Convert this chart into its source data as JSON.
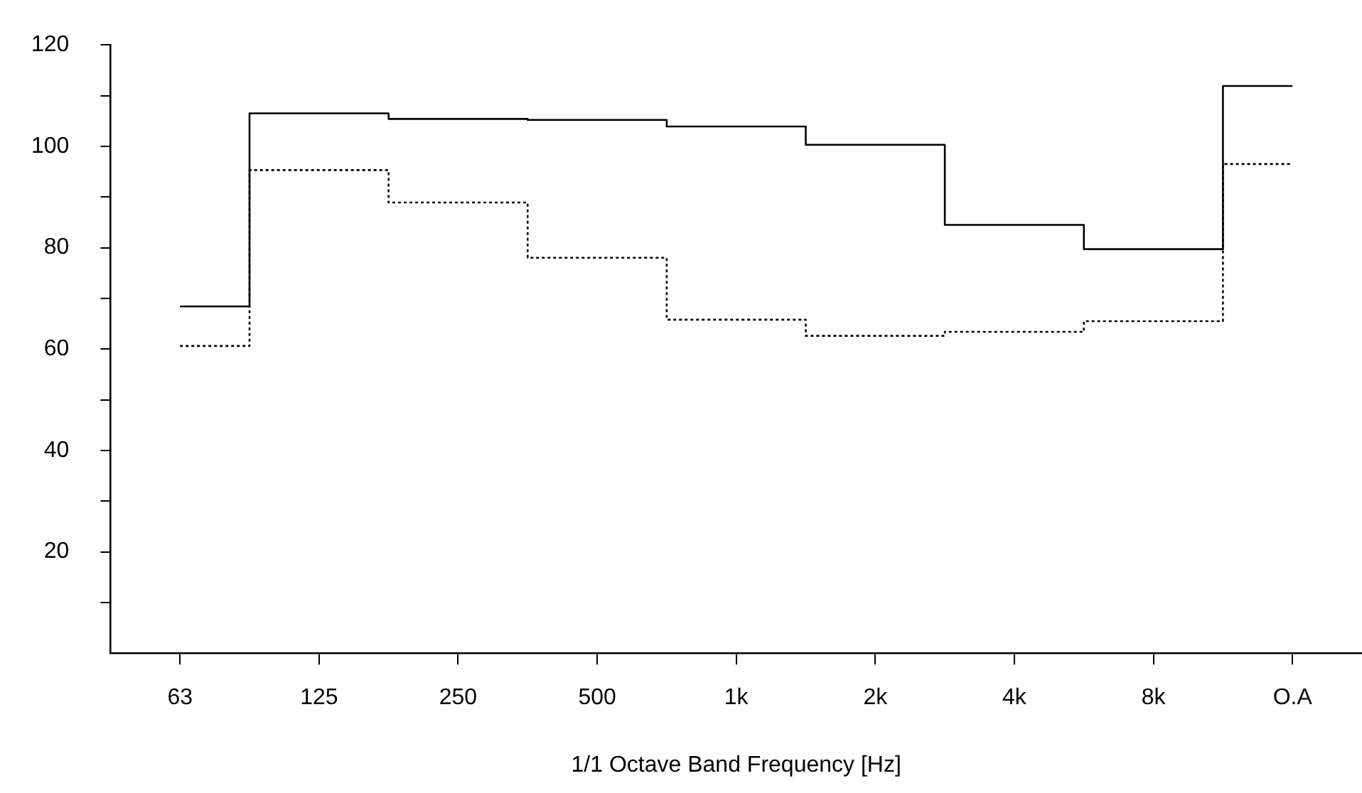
{
  "chart_data": {
    "type": "step",
    "xlabel": "1/1 Octave Band Frequency [Hz]",
    "categories": [
      "63",
      "125",
      "250",
      "500",
      "1k",
      "2k",
      "4k",
      "8k",
      "O.A"
    ],
    "series": [
      {
        "color": "#000000",
        "line_style": "solid",
        "values": [
          68.4,
          106.5,
          105.4,
          105.2,
          103.9,
          100.3,
          84.5,
          79.7,
          111.9
        ]
      },
      {
        "color": "#000000",
        "line_style": "dotted",
        "values": [
          60.6,
          95.3,
          88.9,
          78.0,
          65.8,
          62.6,
          63.4,
          65.5,
          96.5
        ]
      }
    ],
    "ylim": [
      0,
      120
    ],
    "yticks": [
      {
        "value": 10,
        "label": null
      },
      20,
      {
        "value": 30,
        "label": null
      },
      40,
      {
        "value": 50,
        "label": null
      },
      60,
      {
        "value": 70,
        "label": null
      },
      80,
      {
        "value": 90,
        "label": null
      },
      100,
      {
        "value": 110,
        "label": null
      },
      120
    ],
    "grid": false,
    "legend": false,
    "marker": "none"
  }
}
